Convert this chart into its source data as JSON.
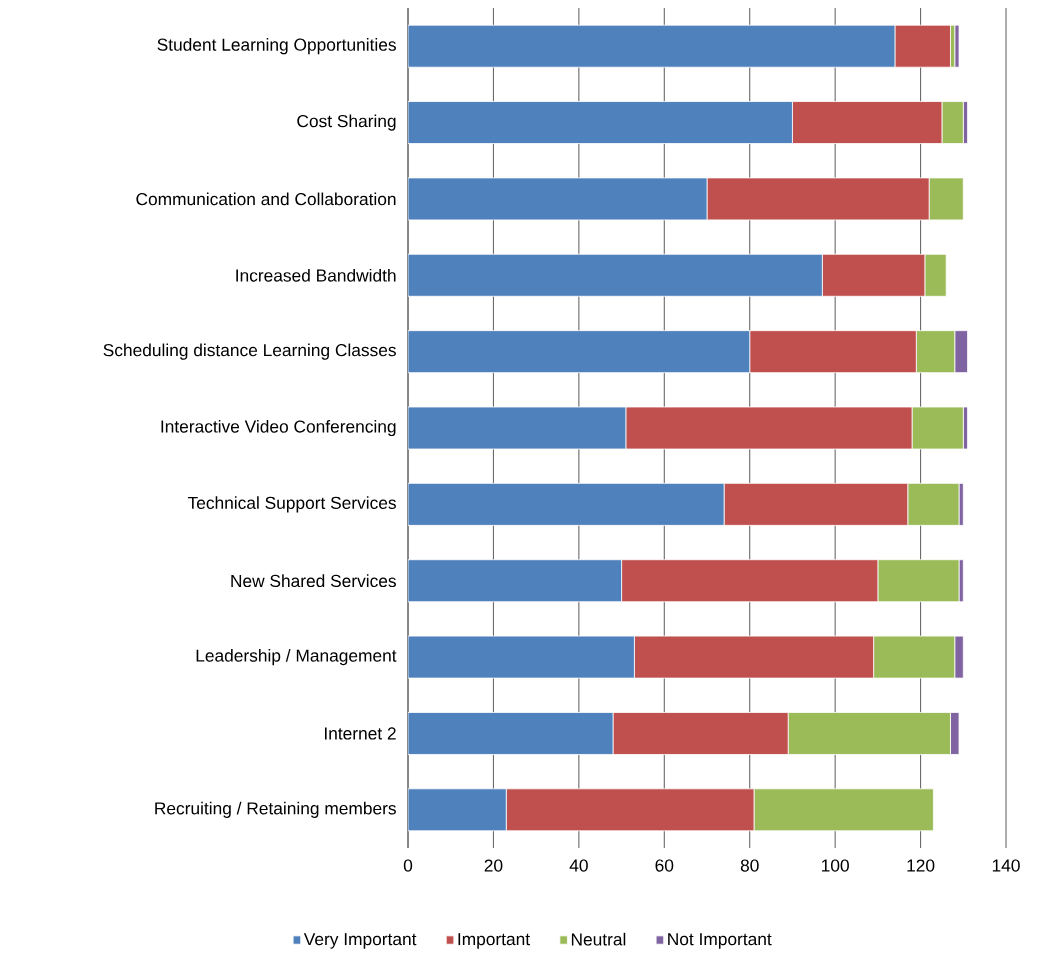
{
  "chart_data": {
    "type": "bar",
    "orientation": "horizontal",
    "stacked": true,
    "categories": [
      "Student Learning Opportunities",
      "Cost Sharing",
      "Communication and Collaboration",
      "Increased Bandwidth",
      "Scheduling distance Learning Classes",
      "Interactive Video Conferencing",
      "Technical Support Services",
      "New Shared Services",
      "Leadership / Management",
      "Internet 2",
      "Recruiting / Retaining members"
    ],
    "series": [
      {
        "name": "Very Important",
        "color": "#4f81bd",
        "values": [
          114,
          90,
          70,
          97,
          80,
          51,
          74,
          50,
          53,
          48,
          23
        ]
      },
      {
        "name": "Important",
        "color": "#c0504d",
        "values": [
          13,
          35,
          52,
          24,
          39,
          67,
          43,
          60,
          56,
          41,
          58
        ]
      },
      {
        "name": "Neutral",
        "color": "#9bbb59",
        "values": [
          1,
          5,
          8,
          5,
          9,
          12,
          12,
          19,
          19,
          38,
          42
        ]
      },
      {
        "name": "Not Important",
        "color": "#8064a2",
        "values": [
          1,
          1,
          0,
          0,
          3,
          1,
          1,
          1,
          2,
          2,
          0
        ]
      }
    ],
    "xlim": [
      0,
      140
    ],
    "xticks": [
      0,
      20,
      40,
      60,
      80,
      100,
      120,
      140
    ],
    "grid": "x",
    "legend": "bottom"
  }
}
